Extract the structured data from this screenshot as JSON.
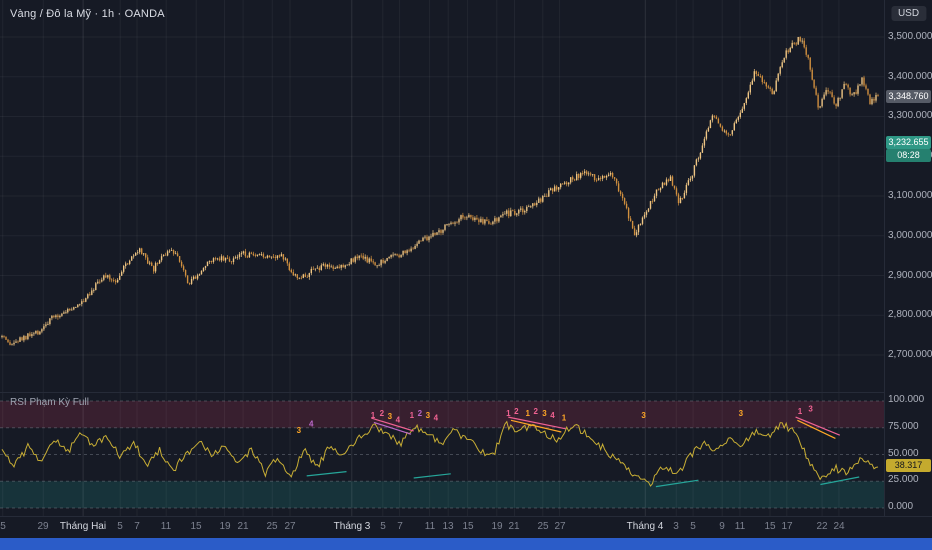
{
  "header": {
    "symbol_title": "Vàng / Đô la Mỹ · 1h · OANDA",
    "currency_button": "USD"
  },
  "rsi_label": "RSI Phạm Kỳ Full",
  "badges": {
    "last_price": {
      "text": "3,348.760"
    },
    "current_price": {
      "text": "3,232.655"
    },
    "countdown": {
      "text": "08:28"
    },
    "rsi_value": {
      "text": "38.317"
    }
  },
  "chart_data": {
    "type": "candlestick",
    "title": "Vàng / Đô la Mỹ (Gold / US Dollar)",
    "interval": "1h",
    "source": "OANDA",
    "seed": 13,
    "candle_count": 440,
    "price_range": [
      2607,
      3593
    ],
    "last_price": 3348.76,
    "current_price": 3232.655,
    "price_gridlines": [
      {
        "v": 2700,
        "t": "2,700.000"
      },
      {
        "v": 2800,
        "t": "2,800.000"
      },
      {
        "v": 2900,
        "t": "2,900.000"
      },
      {
        "v": 3000,
        "t": "3,000.000"
      },
      {
        "v": 3100,
        "t": "3,100.000"
      },
      {
        "v": 3200,
        "t": "3,200.000"
      },
      {
        "v": 3300,
        "t": "3,300.000"
      },
      {
        "v": 3400,
        "t": "3,400.000"
      },
      {
        "v": 3500,
        "t": "3,500.000"
      }
    ],
    "colors": {
      "up": "#eec584",
      "down": "#d1903f",
      "grid": "rgba(255,255,255,0.05)",
      "grid_month": "rgba(255,255,255,0.10)",
      "rsi_line": "#c8ae35",
      "band_upper": "rgba(236,64,102,0.16)",
      "band_lower": "rgba(32,156,144,0.20)",
      "dashed": "#737884"
    },
    "price_anchors": [
      [
        0,
        2745
      ],
      [
        0.008,
        2722
      ],
      [
        0.02,
        2738
      ],
      [
        0.04,
        2755
      ],
      [
        0.055,
        2788
      ],
      [
        0.07,
        2808
      ],
      [
        0.085,
        2820
      ],
      [
        0.1,
        2858
      ],
      [
        0.115,
        2898
      ],
      [
        0.13,
        2888
      ],
      [
        0.145,
        2938
      ],
      [
        0.158,
        2962
      ],
      [
        0.172,
        2912
      ],
      [
        0.185,
        2955
      ],
      [
        0.2,
        2958
      ],
      [
        0.213,
        2882
      ],
      [
        0.228,
        2915
      ],
      [
        0.245,
        2948
      ],
      [
        0.26,
        2938
      ],
      [
        0.275,
        2955
      ],
      [
        0.29,
        2945
      ],
      [
        0.305,
        2952
      ],
      [
        0.32,
        2948
      ],
      [
        0.338,
        2888
      ],
      [
        0.352,
        2908
      ],
      [
        0.368,
        2928
      ],
      [
        0.382,
        2918
      ],
      [
        0.398,
        2938
      ],
      [
        0.412,
        2945
      ],
      [
        0.428,
        2930
      ],
      [
        0.445,
        2950
      ],
      [
        0.462,
        2958
      ],
      [
        0.478,
        2988
      ],
      [
        0.495,
        3005
      ],
      [
        0.512,
        3032
      ],
      [
        0.528,
        3052
      ],
      [
        0.542,
        3042
      ],
      [
        0.558,
        3030
      ],
      [
        0.572,
        3055
      ],
      [
        0.59,
        3058
      ],
      [
        0.61,
        3082
      ],
      [
        0.63,
        3118
      ],
      [
        0.648,
        3140
      ],
      [
        0.665,
        3158
      ],
      [
        0.678,
        3142
      ],
      [
        0.695,
        3162
      ],
      [
        0.71,
        3088
      ],
      [
        0.722,
        3002
      ],
      [
        0.733,
        3048
      ],
      [
        0.748,
        3118
      ],
      [
        0.762,
        3148
      ],
      [
        0.773,
        3082
      ],
      [
        0.788,
        3158
      ],
      [
        0.8,
        3232
      ],
      [
        0.81,
        3298
      ],
      [
        0.82,
        3278
      ],
      [
        0.83,
        3252
      ],
      [
        0.84,
        3302
      ],
      [
        0.85,
        3342
      ],
      [
        0.86,
        3418
      ],
      [
        0.87,
        3388
      ],
      [
        0.88,
        3358
      ],
      [
        0.89,
        3438
      ],
      [
        0.9,
        3478
      ],
      [
        0.912,
        3498
      ],
      [
        0.922,
        3428
      ],
      [
        0.932,
        3322
      ],
      [
        0.942,
        3368
      ],
      [
        0.952,
        3332
      ],
      [
        0.962,
        3378
      ],
      [
        0.972,
        3352
      ],
      [
        0.982,
        3392
      ],
      [
        0.99,
        3338
      ],
      [
        1,
        3349
      ]
    ],
    "rsi": {
      "seed": 29,
      "last": 38.317,
      "range": [
        0,
        100
      ],
      "bands": {
        "upper": [
          75,
          100
        ],
        "lower": [
          0,
          25
        ]
      },
      "gridlines": [
        100,
        75,
        50,
        25,
        0
      ],
      "axis_labels": [
        {
          "v": 100,
          "t": "100.000"
        },
        {
          "v": 75,
          "t": "75.000"
        },
        {
          "v": 50,
          "t": "50.000"
        },
        {
          "v": 25,
          "t": "25.000"
        },
        {
          "v": 0,
          "t": "0.000"
        }
      ],
      "anchors": [
        [
          0,
          52
        ],
        [
          0.015,
          40
        ],
        [
          0.03,
          58
        ],
        [
          0.045,
          44
        ],
        [
          0.06,
          65
        ],
        [
          0.075,
          52
        ],
        [
          0.09,
          70
        ],
        [
          0.105,
          58
        ],
        [
          0.12,
          68
        ],
        [
          0.135,
          46
        ],
        [
          0.15,
          62
        ],
        [
          0.165,
          40
        ],
        [
          0.18,
          55
        ],
        [
          0.195,
          35
        ],
        [
          0.21,
          50
        ],
        [
          0.225,
          62
        ],
        [
          0.24,
          48
        ],
        [
          0.255,
          58
        ],
        [
          0.27,
          42
        ],
        [
          0.285,
          55
        ],
        [
          0.3,
          32
        ],
        [
          0.315,
          48
        ],
        [
          0.33,
          28
        ],
        [
          0.345,
          55
        ],
        [
          0.36,
          38
        ],
        [
          0.375,
          60
        ],
        [
          0.39,
          48
        ],
        [
          0.405,
          65
        ],
        [
          0.425,
          76
        ],
        [
          0.44,
          68
        ],
        [
          0.455,
          60
        ],
        [
          0.47,
          78
        ],
        [
          0.485,
          70
        ],
        [
          0.5,
          60
        ],
        [
          0.515,
          72
        ],
        [
          0.53,
          64
        ],
        [
          0.545,
          55
        ],
        [
          0.56,
          48
        ],
        [
          0.575,
          78
        ],
        [
          0.59,
          72
        ],
        [
          0.605,
          76
        ],
        [
          0.62,
          70
        ],
        [
          0.635,
          64
        ],
        [
          0.65,
          78
        ],
        [
          0.665,
          70
        ],
        [
          0.68,
          60
        ],
        [
          0.695,
          50
        ],
        [
          0.71,
          38
        ],
        [
          0.725,
          28
        ],
        [
          0.74,
          22
        ],
        [
          0.755,
          40
        ],
        [
          0.77,
          30
        ],
        [
          0.785,
          48
        ],
        [
          0.8,
          60
        ],
        [
          0.815,
          52
        ],
        [
          0.83,
          66
        ],
        [
          0.845,
          58
        ],
        [
          0.86,
          72
        ],
        [
          0.875,
          66
        ],
        [
          0.89,
          78
        ],
        [
          0.905,
          72
        ],
        [
          0.92,
          45
        ],
        [
          0.935,
          26
        ],
        [
          0.95,
          38
        ],
        [
          0.965,
          32
        ],
        [
          0.98,
          45
        ],
        [
          1,
          38.3
        ]
      ],
      "digits": [
        {
          "x": 0.338,
          "v": 70,
          "t": "3",
          "c": "#ffa726"
        },
        {
          "x": 0.352,
          "v": 76,
          "t": "4",
          "c": "#ba68c8"
        },
        {
          "x": 0.422,
          "v": 84,
          "t": "1",
          "c": "#f06292"
        },
        {
          "x": 0.432,
          "v": 86,
          "t": "2",
          "c": "#f06292"
        },
        {
          "x": 0.441,
          "v": 83,
          "t": "3",
          "c": "#ffa726"
        },
        {
          "x": 0.45,
          "v": 80,
          "t": "4",
          "c": "#f06292"
        },
        {
          "x": 0.466,
          "v": 84,
          "t": "1",
          "c": "#f06292"
        },
        {
          "x": 0.475,
          "v": 86,
          "t": "2",
          "c": "#ba68c8"
        },
        {
          "x": 0.484,
          "v": 84,
          "t": "3",
          "c": "#ffa726"
        },
        {
          "x": 0.493,
          "v": 82,
          "t": "4",
          "c": "#f06292"
        },
        {
          "x": 0.575,
          "v": 86,
          "t": "1",
          "c": "#f06292"
        },
        {
          "x": 0.584,
          "v": 88,
          "t": "2",
          "c": "#f06292"
        },
        {
          "x": 0.597,
          "v": 86,
          "t": "1",
          "c": "#ffa726"
        },
        {
          "x": 0.606,
          "v": 88,
          "t": "2",
          "c": "#f06292"
        },
        {
          "x": 0.616,
          "v": 86,
          "t": "3",
          "c": "#ffa726"
        },
        {
          "x": 0.625,
          "v": 84,
          "t": "4",
          "c": "#f06292"
        },
        {
          "x": 0.638,
          "v": 82,
          "t": "1",
          "c": "#ffa726"
        },
        {
          "x": 0.728,
          "v": 84,
          "t": "3",
          "c": "#ffa726"
        },
        {
          "x": 0.838,
          "v": 86,
          "t": "3",
          "c": "#ffa726"
        },
        {
          "x": 0.905,
          "v": 88,
          "t": "1",
          "c": "#f06292"
        },
        {
          "x": 0.917,
          "v": 90,
          "t": "3",
          "c": "#f06292"
        }
      ],
      "lines": [
        {
          "x1": 0.42,
          "v1": 84,
          "x2": 0.468,
          "v2": 72,
          "c": "#f06292"
        },
        {
          "x1": 0.423,
          "v1": 80,
          "x2": 0.465,
          "v2": 69,
          "c": "#ba68c8"
        },
        {
          "x1": 0.575,
          "v1": 85,
          "x2": 0.64,
          "v2": 74,
          "c": "#f06292"
        },
        {
          "x1": 0.578,
          "v1": 82,
          "x2": 0.635,
          "v2": 71,
          "c": "#ffa726"
        },
        {
          "x1": 0.9,
          "v1": 85,
          "x2": 0.95,
          "v2": 68,
          "c": "#f06292"
        },
        {
          "x1": 0.902,
          "v1": 82,
          "x2": 0.945,
          "v2": 65,
          "c": "#ffa726"
        },
        {
          "x1": 0.347,
          "v1": 30,
          "x2": 0.392,
          "v2": 34,
          "c": "#26a69a"
        },
        {
          "x1": 0.468,
          "v1": 28,
          "x2": 0.51,
          "v2": 32,
          "c": "#26a69a"
        },
        {
          "x1": 0.742,
          "v1": 20,
          "x2": 0.79,
          "v2": 26,
          "c": "#26a69a"
        },
        {
          "x1": 0.928,
          "v1": 22,
          "x2": 0.972,
          "v2": 29,
          "c": "#26a69a"
        }
      ]
    },
    "time_axis": [
      {
        "t": "5",
        "x": 0.003
      },
      {
        "t": "29",
        "x": 0.049
      },
      {
        "t": "Tháng Hai",
        "x": 0.094,
        "m": true
      },
      {
        "t": "5",
        "x": 0.136
      },
      {
        "t": "7",
        "x": 0.155
      },
      {
        "t": "11",
        "x": 0.188
      },
      {
        "t": "15",
        "x": 0.222
      },
      {
        "t": "19",
        "x": 0.254
      },
      {
        "t": "21",
        "x": 0.275
      },
      {
        "t": "25",
        "x": 0.308
      },
      {
        "t": "27",
        "x": 0.328
      },
      {
        "t": "Tháng 3",
        "x": 0.398,
        "m": true
      },
      {
        "t": "5",
        "x": 0.433
      },
      {
        "t": "7",
        "x": 0.452
      },
      {
        "t": "11",
        "x": 0.486
      },
      {
        "t": "13",
        "x": 0.507
      },
      {
        "t": "15",
        "x": 0.529
      },
      {
        "t": "19",
        "x": 0.562
      },
      {
        "t": "21",
        "x": 0.582
      },
      {
        "t": "25",
        "x": 0.614
      },
      {
        "t": "27",
        "x": 0.633
      },
      {
        "t": "Tháng 4",
        "x": 0.73,
        "m": true
      },
      {
        "t": "3",
        "x": 0.765
      },
      {
        "t": "5",
        "x": 0.784
      },
      {
        "t": "9",
        "x": 0.817
      },
      {
        "t": "11",
        "x": 0.837
      },
      {
        "t": "15",
        "x": 0.871
      },
      {
        "t": "17",
        "x": 0.89
      },
      {
        "t": "22",
        "x": 0.93
      },
      {
        "t": "24",
        "x": 0.949
      }
    ]
  }
}
